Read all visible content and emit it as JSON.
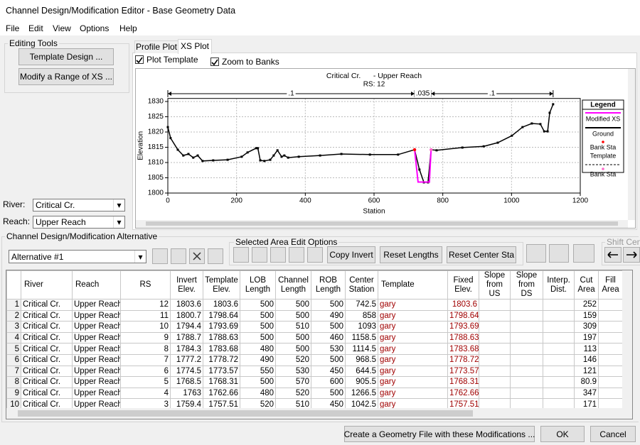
{
  "window": {
    "title": "Channel Design/Modification Editor - Base Geometry Data"
  },
  "menu": [
    "File",
    "Edit",
    "View",
    "Options",
    "Help"
  ],
  "editing_tools": {
    "title": "Editing Tools",
    "buttons": [
      "Template Design ...",
      "Modify a Range of XS ..."
    ]
  },
  "river": {
    "label": "River:",
    "value": "Critical Cr."
  },
  "reach": {
    "label": "Reach:",
    "value": "Upper Reach"
  },
  "tabs": [
    "Profile Plot",
    "XS Plot"
  ],
  "options": [
    "Plot Template",
    "Zoom to Banks"
  ],
  "chart_data": {
    "type": "line",
    "title": "Critical Cr.      - Upper Reach",
    "subtitle": "RS: 12",
    "x_label": "Station",
    "y_label": "Elevation",
    "xlim": [
      0,
      1200
    ],
    "ylim": [
      1800,
      1831
    ],
    "xticks": [
      0,
      200,
      400,
      600,
      800,
      1000,
      1200
    ],
    "yticks": [
      1800,
      1805,
      1810,
      1815,
      1820,
      1825,
      1830
    ],
    "grid": true,
    "n_values": [
      {
        "value": 0.1,
        "label": ".1"
      },
      {
        "value": 0.035,
        "label": ".035"
      },
      {
        "value": 0.1,
        "label": ".1"
      }
    ],
    "n_stations": [
      0,
      718,
      766,
      1121
    ],
    "series": [
      {
        "color": "#000000",
        "line": true,
        "marker": "square",
        "x": [
          0,
          8,
          29,
          45,
          60,
          74,
          87,
          101,
          132,
          174,
          215,
          232,
          257,
          262,
          269,
          281,
          298,
          308,
          319,
          331,
          339,
          350,
          381,
          443,
          505,
          588,
          670,
          718,
          732,
          745,
          757,
          766,
          782,
          857,
          919,
          960,
          1001,
          1032,
          1059,
          1084,
          1095,
          1105,
          1111,
          1121
        ],
        "values": [
          1821.6,
          1818,
          1814.2,
          1812.3,
          1812.8,
          1811.6,
          1812.3,
          1810.5,
          1810.7,
          1810.9,
          1811.9,
          1813.3,
          1814.7,
          1814.7,
          1810.7,
          1810.5,
          1810.9,
          1812.3,
          1814,
          1811.9,
          1812.3,
          1811.6,
          1811.9,
          1812.3,
          1812.8,
          1812.6,
          1812.6,
          1814.2,
          1807.7,
          1803.5,
          1803.5,
          1814.2,
          1814,
          1814.9,
          1815.3,
          1816.5,
          1818.8,
          1821.6,
          1822.8,
          1822.6,
          1820.2,
          1820.2,
          1826.3,
          1829.1
        ]
      },
      {
        "color": "#ff00ff",
        "line": true,
        "x": [
          718,
          728,
          761,
          766
        ],
        "values": [
          1814.2,
          1803.6,
          1803.6,
          1814.2
        ]
      },
      {
        "color": "#ff66cc",
        "line": false,
        "marker": "dot",
        "x": [
          718,
          766
        ],
        "values": [
          1814.2,
          1814.2
        ]
      },
      {
        "color": "#ff0000",
        "line": false,
        "marker": "dot",
        "x": [
          718
        ],
        "values": [
          1814.2
        ]
      }
    ],
    "legend_title": "Legend",
    "legend": [
      {
        "text": "Modified XS",
        "symbol": "line",
        "color": "#ff00ff"
      },
      {
        "text": "Ground",
        "symbol": "line",
        "color": "#000000"
      },
      {
        "text": "Bank Sta",
        "symbol": "dot",
        "color": "#ff0000"
      },
      {
        "text": "Template",
        "symbol": "dash",
        "color": "#000000"
      },
      {
        "text": "Bank Sta",
        "symbol": "dot",
        "color": "#ff66cc"
      }
    ]
  },
  "alternative": {
    "title": "Channel Design/Modification Alternative",
    "value": "Alternative #1"
  },
  "edit_options": {
    "title": "Selected Area Edit Options",
    "buttons": [
      "Copy Invert",
      "Reset Lengths",
      "Reset Center Sta"
    ]
  },
  "shift": {
    "title": "Shift Cen"
  },
  "table": {
    "columns": [
      "River",
      "Reach",
      "RS",
      "Invert Elev.",
      "Template Elev.",
      "LOB Length",
      "Channel Length",
      "ROB Length",
      "Center Station",
      "Template",
      "Fixed Elev.",
      "Slope from US",
      "Slope from DS",
      "Interp. Dist.",
      "Cut Area",
      "Fill Area"
    ],
    "rows": [
      [
        1,
        "Critical Cr.",
        "Upper Reach",
        12,
        1803.6,
        1803.6,
        500,
        500,
        500,
        742.5,
        "gary",
        1803.6,
        null,
        null,
        null,
        252,
        null
      ],
      [
        2,
        "Critical Cr.",
        "Upper Reach",
        11,
        1800.7,
        1798.64,
        500,
        500,
        490,
        858,
        "gary",
        1798.64,
        null,
        null,
        null,
        159,
        null
      ],
      [
        3,
        "Critical Cr.",
        "Upper Reach",
        10,
        1794.4,
        1793.69,
        500,
        510,
        500,
        1093,
        "gary",
        1793.69,
        null,
        null,
        null,
        309,
        null
      ],
      [
        4,
        "Critical Cr.",
        "Upper Reach",
        9,
        1788.7,
        1788.63,
        500,
        500,
        460,
        1158.5,
        "gary",
        1788.63,
        null,
        null,
        null,
        197,
        null
      ],
      [
        5,
        "Critical Cr.",
        "Upper Reach",
        8,
        1784.3,
        1783.68,
        480,
        500,
        530,
        1114.5,
        "gary",
        1783.68,
        null,
        null,
        null,
        113,
        null
      ],
      [
        6,
        "Critical Cr.",
        "Upper Reach",
        7,
        1777.2,
        1778.72,
        490,
        520,
        500,
        968.5,
        "gary",
        1778.72,
        null,
        null,
        null,
        146,
        null
      ],
      [
        7,
        "Critical Cr.",
        "Upper Reach",
        6,
        1774.5,
        1773.57,
        550,
        530,
        450,
        644.5,
        "gary",
        1773.57,
        null,
        null,
        null,
        121,
        null
      ],
      [
        8,
        "Critical Cr.",
        "Upper Reach",
        5,
        1768.5,
        1768.31,
        500,
        570,
        600,
        905.5,
        "gary",
        1768.31,
        null,
        null,
        null,
        80.9,
        null
      ],
      [
        9,
        "Critical Cr.",
        "Upper Reach",
        4,
        1763,
        1762.66,
        480,
        520,
        500,
        1266.5,
        "gary",
        1762.66,
        null,
        null,
        null,
        347,
        null
      ],
      [
        10,
        "Critical Cr.",
        "Upper Reach",
        3,
        1759.4,
        1757.51,
        520,
        510,
        450,
        1042.5,
        "gary",
        1757.51,
        null,
        null,
        null,
        171,
        null
      ]
    ]
  },
  "footer": {
    "buttons": [
      "Create a Geometry File with these Modifications ...",
      "OK",
      "Cancel"
    ]
  }
}
